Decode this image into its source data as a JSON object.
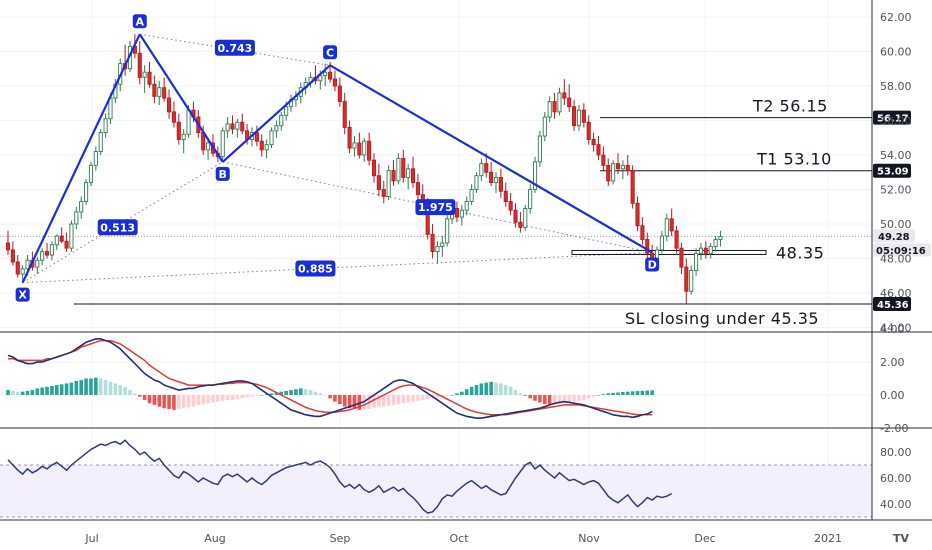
{
  "chart_data": {
    "type": "candlestick",
    "price_axis": {
      "ticks": [
        "62.00",
        "60.00",
        "58.00",
        "56.00",
        "54.00",
        "52.00",
        "50.00",
        "48.00",
        "46.00",
        "44.00"
      ],
      "range": [
        44.0,
        62.8
      ]
    },
    "macd_axis": {
      "ticks": [
        "4.00",
        "2.00",
        "0.00",
        "-2.00"
      ],
      "range": [
        -2.2,
        4.6
      ]
    },
    "rsi_axis": {
      "ticks": [
        "80.00",
        "60.00",
        "40.00"
      ],
      "range": [
        30,
        92
      ],
      "band": [
        30,
        70
      ]
    },
    "x_axis": {
      "ticks": [
        "Jul",
        "Aug",
        "Sep",
        "Oct",
        "Nov",
        "Dec",
        "2021"
      ]
    },
    "pattern": {
      "points": [
        {
          "label": "X",
          "date_index": 3,
          "price": 46.6
        },
        {
          "label": "A",
          "date_index": 27,
          "price": 61.0
        },
        {
          "label": "B",
          "date_index": 44,
          "price": 53.6
        },
        {
          "label": "C",
          "date_index": 66,
          "price": 59.2
        },
        {
          "label": "D",
          "date_index": 132,
          "price": 48.35
        }
      ],
      "ratios": [
        "0.743",
        "0.513",
        "1.975",
        "0.885"
      ]
    },
    "levels": [
      {
        "text": "T2   56.15",
        "badge": "56.17",
        "price": 56.17,
        "badge_color": "#131722",
        "badge_text_color": "#ffffff"
      },
      {
        "text": "T1   53.10",
        "badge": "53.09",
        "price": 53.09,
        "badge_color": "#131722",
        "badge_text_color": "#ffffff"
      },
      {
        "text": "48.35",
        "badge": "",
        "price": 48.35
      },
      {
        "text": "SL closing under 45.35",
        "badge": "45.36",
        "price": 45.36,
        "badge_color": "#131722",
        "badge_text_color": "#ffffff"
      }
    ],
    "last_price": {
      "value": "49.28",
      "countdown": "05:09:16",
      "price": 49.28
    },
    "candles": [
      [
        48.9,
        49.6,
        48.2,
        48.5
      ],
      [
        48.5,
        49.0,
        47.6,
        47.8
      ],
      [
        47.8,
        48.2,
        46.9,
        47.1
      ],
      [
        47.1,
        47.6,
        46.6,
        47.4
      ],
      [
        47.4,
        48.2,
        47.0,
        47.9
      ],
      [
        47.9,
        48.4,
        47.3,
        47.5
      ],
      [
        47.5,
        48.1,
        47.1,
        47.9
      ],
      [
        47.9,
        48.6,
        47.6,
        48.4
      ],
      [
        48.4,
        48.9,
        48.0,
        48.2
      ],
      [
        48.2,
        49.0,
        47.9,
        48.8
      ],
      [
        48.8,
        49.4,
        48.5,
        49.3
      ],
      [
        49.3,
        49.8,
        48.9,
        49.0
      ],
      [
        49.0,
        49.5,
        48.4,
        48.6
      ],
      [
        48.6,
        50.2,
        48.4,
        50.0
      ],
      [
        50.0,
        51.0,
        49.7,
        50.7
      ],
      [
        50.7,
        51.6,
        50.3,
        51.3
      ],
      [
        51.3,
        52.6,
        51.1,
        52.4
      ],
      [
        52.4,
        53.6,
        52.2,
        53.4
      ],
      [
        53.4,
        54.5,
        53.1,
        54.2
      ],
      [
        54.2,
        55.5,
        54.0,
        55.3
      ],
      [
        55.3,
        56.4,
        55.0,
        56.1
      ],
      [
        56.1,
        57.6,
        55.8,
        57.3
      ],
      [
        57.3,
        58.4,
        57.0,
        58.1
      ],
      [
        58.1,
        59.6,
        57.7,
        59.3
      ],
      [
        59.3,
        60.4,
        58.6,
        59.0
      ],
      [
        59.0,
        60.6,
        58.8,
        60.3
      ],
      [
        60.3,
        61.0,
        59.6,
        59.9
      ],
      [
        59.9,
        60.6,
        58.1,
        58.5
      ],
      [
        58.5,
        59.2,
        57.6,
        58.8
      ],
      [
        58.8,
        59.4,
        57.9,
        58.1
      ],
      [
        58.1,
        58.6,
        57.0,
        57.4
      ],
      [
        57.4,
        58.3,
        56.9,
        57.9
      ],
      [
        57.9,
        58.5,
        57.1,
        57.3
      ],
      [
        57.3,
        57.8,
        56.1,
        56.5
      ],
      [
        56.5,
        57.1,
        55.6,
        55.9
      ],
      [
        55.9,
        56.4,
        54.6,
        54.9
      ],
      [
        54.9,
        55.5,
        54.1,
        55.2
      ],
      [
        55.2,
        56.9,
        55.0,
        56.6
      ],
      [
        56.6,
        57.1,
        55.9,
        56.2
      ],
      [
        56.2,
        56.6,
        55.0,
        55.3
      ],
      [
        55.3,
        55.7,
        54.0,
        54.3
      ],
      [
        54.3,
        55.0,
        53.7,
        54.7
      ],
      [
        54.7,
        55.2,
        53.9,
        54.1
      ],
      [
        54.1,
        54.5,
        53.6,
        53.9
      ],
      [
        53.9,
        55.6,
        53.7,
        55.4
      ],
      [
        55.4,
        56.2,
        55.0,
        55.8
      ],
      [
        55.8,
        56.3,
        55.2,
        55.5
      ],
      [
        55.5,
        56.1,
        55.0,
        55.9
      ],
      [
        55.9,
        56.4,
        55.2,
        55.4
      ],
      [
        55.4,
        55.8,
        54.6,
        54.9
      ],
      [
        54.9,
        55.6,
        54.5,
        55.3
      ],
      [
        55.3,
        55.7,
        54.5,
        54.8
      ],
      [
        54.8,
        55.2,
        53.9,
        54.3
      ],
      [
        54.3,
        54.9,
        53.8,
        54.6
      ],
      [
        54.6,
        55.6,
        54.4,
        55.4
      ],
      [
        55.4,
        56.0,
        55.0,
        55.7
      ],
      [
        55.7,
        56.5,
        55.4,
        56.3
      ],
      [
        56.3,
        57.1,
        56.0,
        56.8
      ],
      [
        56.8,
        57.5,
        56.5,
        57.2
      ],
      [
        57.2,
        57.7,
        56.8,
        57.4
      ],
      [
        57.4,
        58.2,
        57.0,
        57.9
      ],
      [
        57.9,
        58.5,
        57.5,
        58.2
      ],
      [
        58.2,
        58.8,
        57.9,
        58.5
      ],
      [
        58.5,
        59.2,
        58.1,
        58.3
      ],
      [
        58.3,
        58.9,
        57.8,
        58.6
      ],
      [
        58.6,
        59.3,
        58.0,
        58.8
      ],
      [
        58.8,
        59.4,
        58.2,
        58.4
      ],
      [
        58.4,
        58.9,
        57.7,
        58.0
      ],
      [
        58.0,
        58.5,
        56.8,
        57.1
      ],
      [
        57.1,
        57.6,
        55.2,
        55.6
      ],
      [
        55.6,
        56.0,
        54.1,
        54.4
      ],
      [
        54.4,
        55.1,
        53.9,
        54.7
      ],
      [
        54.7,
        55.3,
        53.8,
        54.0
      ],
      [
        54.0,
        55.0,
        53.6,
        54.8
      ],
      [
        54.8,
        55.3,
        53.4,
        53.7
      ],
      [
        53.7,
        54.1,
        52.4,
        52.8
      ],
      [
        52.8,
        53.5,
        51.6,
        52.0
      ],
      [
        52.0,
        52.5,
        51.2,
        51.6
      ],
      [
        51.6,
        53.4,
        51.4,
        53.1
      ],
      [
        53.1,
        53.7,
        52.2,
        52.5
      ],
      [
        52.5,
        54.1,
        52.3,
        53.8
      ],
      [
        53.8,
        54.3,
        52.4,
        52.7
      ],
      [
        52.7,
        53.5,
        52.0,
        53.2
      ],
      [
        53.2,
        53.9,
        52.1,
        52.4
      ],
      [
        52.4,
        52.9,
        51.3,
        51.7
      ],
      [
        51.7,
        52.3,
        50.8,
        51.1
      ],
      [
        51.1,
        51.5,
        49.1,
        49.4
      ],
      [
        49.4,
        50.0,
        48.0,
        48.4
      ],
      [
        48.4,
        49.0,
        47.7,
        48.7
      ],
      [
        48.7,
        49.3,
        48.1,
        48.9
      ],
      [
        48.9,
        50.6,
        48.7,
        50.3
      ],
      [
        50.3,
        51.2,
        50.0,
        50.9
      ],
      [
        50.9,
        51.3,
        50.1,
        50.4
      ],
      [
        50.4,
        51.1,
        49.9,
        50.8
      ],
      [
        50.8,
        51.6,
        50.5,
        51.3
      ],
      [
        51.3,
        52.3,
        51.1,
        52.0
      ],
      [
        52.0,
        53.0,
        51.8,
        52.8
      ],
      [
        52.8,
        53.8,
        52.5,
        53.5
      ],
      [
        53.5,
        54.1,
        52.7,
        53.0
      ],
      [
        53.0,
        53.6,
        52.2,
        52.4
      ],
      [
        52.4,
        53.0,
        51.8,
        52.7
      ],
      [
        52.7,
        53.2,
        51.5,
        51.9
      ],
      [
        51.9,
        52.4,
        51.0,
        51.3
      ],
      [
        51.3,
        51.8,
        50.5,
        50.8
      ],
      [
        50.8,
        51.2,
        49.8,
        50.1
      ],
      [
        50.1,
        50.7,
        49.5,
        49.8
      ],
      [
        49.8,
        51.1,
        49.6,
        50.9
      ],
      [
        50.9,
        52.3,
        50.6,
        52.0
      ],
      [
        52.0,
        53.9,
        51.8,
        53.6
      ],
      [
        53.6,
        55.4,
        53.3,
        55.1
      ],
      [
        55.1,
        56.5,
        54.8,
        56.2
      ],
      [
        56.2,
        57.4,
        55.9,
        57.1
      ],
      [
        57.1,
        57.6,
        56.1,
        56.5
      ],
      [
        56.5,
        57.9,
        56.3,
        57.6
      ],
      [
        57.6,
        58.4,
        56.9,
        57.3
      ],
      [
        57.3,
        58.1,
        56.5,
        56.8
      ],
      [
        56.8,
        57.2,
        55.4,
        55.7
      ],
      [
        55.7,
        56.9,
        55.4,
        56.6
      ],
      [
        56.6,
        57.0,
        55.6,
        55.9
      ],
      [
        55.9,
        56.3,
        54.6,
        54.9
      ],
      [
        54.9,
        55.3,
        54.2,
        54.6
      ],
      [
        54.6,
        55.1,
        53.7,
        54.0
      ],
      [
        54.0,
        54.5,
        53.1,
        53.4
      ],
      [
        53.4,
        53.8,
        52.2,
        52.5
      ],
      [
        52.5,
        53.7,
        52.3,
        53.5
      ],
      [
        53.5,
        54.1,
        52.9,
        53.2
      ],
      [
        53.2,
        53.7,
        52.6,
        53.4
      ],
      [
        53.4,
        54.0,
        52.8,
        53.1
      ],
      [
        53.1,
        53.4,
        50.9,
        51.2
      ],
      [
        51.2,
        51.6,
        49.6,
        49.9
      ],
      [
        49.9,
        50.4,
        48.8,
        49.1
      ],
      [
        49.1,
        49.5,
        48.0,
        48.3
      ],
      [
        48.3,
        48.8,
        47.6,
        48.0
      ],
      [
        48.0,
        48.7,
        47.8,
        48.5
      ],
      [
        48.5,
        49.6,
        48.3,
        49.3
      ],
      [
        49.3,
        50.6,
        49.0,
        50.3
      ],
      [
        50.3,
        50.9,
        49.3,
        49.6
      ],
      [
        49.6,
        49.9,
        48.3,
        48.6
      ],
      [
        48.6,
        48.9,
        47.1,
        47.5
      ],
      [
        47.5,
        48.0,
        45.4,
        46.1
      ],
      [
        46.1,
        47.6,
        45.9,
        47.3
      ],
      [
        47.3,
        48.6,
        47.0,
        48.3
      ],
      [
        48.3,
        48.9,
        47.9,
        48.6
      ],
      [
        48.6,
        49.0,
        48.0,
        48.3
      ],
      [
        48.3,
        48.9,
        48.0,
        48.7
      ],
      [
        48.7,
        49.3,
        48.4,
        49.1
      ],
      [
        49.1,
        49.6,
        48.7,
        49.28
      ]
    ],
    "macd_hist": [
      0.3,
      0.25,
      0.2,
      0.2,
      0.25,
      0.3,
      0.4,
      0.45,
      0.5,
      0.55,
      0.6,
      0.65,
      0.7,
      0.75,
      0.85,
      0.9,
      1.0,
      1.0,
      1.05,
      1.0,
      0.9,
      0.8,
      0.7,
      0.6,
      0.5,
      0.3,
      0.1,
      -0.1,
      -0.3,
      -0.5,
      -0.6,
      -0.7,
      -0.8,
      -0.85,
      -0.9,
      -0.85,
      -0.8,
      -0.75,
      -0.7,
      -0.6,
      -0.55,
      -0.5,
      -0.45,
      -0.4,
      -0.35,
      -0.3,
      -0.3,
      -0.25,
      -0.2,
      -0.15,
      -0.1,
      -0.05,
      0.0,
      0.05,
      0.1,
      0.15,
      0.2,
      0.25,
      0.3,
      0.35,
      0.4,
      0.35,
      0.3,
      0.2,
      0.1,
      0.0,
      -0.2,
      -0.4,
      -0.55,
      -0.7,
      -0.8,
      -0.85,
      -0.9,
      -0.9,
      -0.85,
      -0.8,
      -0.75,
      -0.7,
      -0.65,
      -0.6,
      -0.55,
      -0.5,
      -0.45,
      -0.4,
      -0.35,
      -0.3,
      -0.25,
      -0.2,
      -0.15,
      -0.1,
      -0.05,
      0.0,
      0.1,
      0.2,
      0.35,
      0.5,
      0.6,
      0.7,
      0.75,
      0.8,
      0.75,
      0.7,
      0.6,
      0.5,
      0.3,
      0.1,
      -0.05,
      -0.2,
      -0.35,
      -0.45,
      -0.55,
      -0.6,
      -0.6,
      -0.55,
      -0.5,
      -0.45,
      -0.4,
      -0.35,
      -0.3,
      -0.2,
      -0.1,
      0.0,
      0.05,
      0.1,
      0.12,
      0.15,
      0.18,
      0.2,
      0.22,
      0.24,
      0.25,
      0.27,
      0.28
    ],
    "macd_line": [
      2.4,
      2.3,
      2.1,
      2.0,
      1.9,
      1.9,
      2.0,
      2.0,
      2.1,
      2.2,
      2.3,
      2.4,
      2.5,
      2.6,
      2.8,
      3.0,
      3.2,
      3.3,
      3.4,
      3.4,
      3.3,
      3.2,
      3.0,
      2.8,
      2.5,
      2.2,
      1.9,
      1.6,
      1.3,
      1.1,
      0.9,
      0.8,
      0.6,
      0.5,
      0.4,
      0.3,
      0.35,
      0.4,
      0.4,
      0.5,
      0.55,
      0.6,
      0.6,
      0.65,
      0.7,
      0.75,
      0.8,
      0.85,
      0.85,
      0.8,
      0.7,
      0.5,
      0.3,
      0.1,
      -0.1,
      -0.3,
      -0.5,
      -0.7,
      -0.9,
      -1.0,
      -1.1,
      -1.2,
      -1.25,
      -1.3,
      -1.3,
      -1.2,
      -1.1,
      -1.0,
      -0.9,
      -0.8,
      -0.7,
      -0.6,
      -0.5,
      -0.4,
      -0.2,
      0.0,
      0.2,
      0.4,
      0.6,
      0.8,
      0.9,
      0.9,
      0.8,
      0.7,
      0.5,
      0.3,
      0.1,
      -0.1,
      -0.3,
      -0.5,
      -0.7,
      -0.9,
      -1.1,
      -1.2,
      -1.3,
      -1.35,
      -1.4,
      -1.4,
      -1.35,
      -1.3,
      -1.25,
      -1.2,
      -1.15,
      -1.1,
      -1.05,
      -1.0,
      -0.95,
      -0.9,
      -0.85,
      -0.8,
      -0.7,
      -0.6,
      -0.5,
      -0.45,
      -0.4,
      -0.45,
      -0.5,
      -0.55,
      -0.6,
      -0.7,
      -0.8,
      -0.9,
      -1.0,
      -1.1,
      -1.2,
      -1.25,
      -1.3,
      -1.3,
      -1.35,
      -1.3,
      -1.2,
      -1.15,
      -1.0
    ],
    "macd_signal": [
      2.2,
      2.2,
      2.1,
      2.1,
      2.1,
      2.1,
      2.1,
      2.1,
      2.2,
      2.2,
      2.3,
      2.4,
      2.5,
      2.6,
      2.7,
      2.9,
      3.0,
      3.1,
      3.2,
      3.3,
      3.3,
      3.3,
      3.2,
      3.1,
      2.9,
      2.7,
      2.5,
      2.3,
      2.1,
      1.8,
      1.6,
      1.4,
      1.2,
      1.0,
      0.9,
      0.8,
      0.7,
      0.6,
      0.6,
      0.6,
      0.6,
      0.6,
      0.6,
      0.65,
      0.65,
      0.7,
      0.7,
      0.75,
      0.75,
      0.75,
      0.7,
      0.65,
      0.55,
      0.45,
      0.3,
      0.15,
      0.0,
      -0.15,
      -0.3,
      -0.45,
      -0.6,
      -0.75,
      -0.85,
      -0.95,
      -1.0,
      -1.05,
      -1.05,
      -1.05,
      -1.0,
      -0.95,
      -0.9,
      -0.8,
      -0.7,
      -0.6,
      -0.45,
      -0.3,
      -0.15,
      0.0,
      0.15,
      0.3,
      0.45,
      0.55,
      0.6,
      0.6,
      0.55,
      0.45,
      0.35,
      0.2,
      0.05,
      -0.1,
      -0.25,
      -0.4,
      -0.55,
      -0.7,
      -0.85,
      -0.95,
      -1.05,
      -1.1,
      -1.15,
      -1.2,
      -1.2,
      -1.2,
      -1.2,
      -1.15,
      -1.1,
      -1.05,
      -1.0,
      -0.95,
      -0.9,
      -0.85,
      -0.8,
      -0.75,
      -0.7,
      -0.65,
      -0.6,
      -0.6,
      -0.6,
      -0.6,
      -0.65,
      -0.7,
      -0.75,
      -0.8,
      -0.85,
      -0.9,
      -0.95,
      -1.0,
      -1.05,
      -1.1,
      -1.15,
      -1.2,
      -1.2,
      -1.2,
      -1.2
    ],
    "rsi": [
      74,
      70,
      66,
      63,
      67,
      64,
      66,
      69,
      67,
      70,
      72,
      69,
      66,
      70,
      73,
      76,
      79,
      82,
      84,
      86,
      85,
      87,
      88,
      86,
      89,
      85,
      82,
      78,
      80,
      76,
      73,
      75,
      70,
      66,
      62,
      60,
      65,
      63,
      60,
      57,
      60,
      58,
      56,
      55,
      61,
      63,
      61,
      63,
      60,
      57,
      60,
      57,
      55,
      58,
      62,
      64,
      66,
      68,
      69,
      70,
      71,
      72,
      70,
      72,
      73,
      71,
      68,
      63,
      57,
      53,
      55,
      52,
      55,
      51,
      49,
      51,
      54,
      49,
      51,
      53,
      50,
      52,
      48,
      45,
      41,
      36,
      33,
      34,
      38,
      44,
      47,
      46,
      50,
      53,
      56,
      58,
      55,
      52,
      54,
      51,
      49,
      47,
      48,
      54,
      60,
      65,
      70,
      72,
      67,
      70,
      66,
      63,
      60,
      64,
      61,
      58,
      59,
      57,
      55,
      57,
      58,
      56,
      51,
      46,
      43,
      41,
      44,
      47,
      42,
      38,
      41,
      45,
      43,
      46,
      45,
      46,
      48
    ]
  },
  "tv_marker": "TV"
}
